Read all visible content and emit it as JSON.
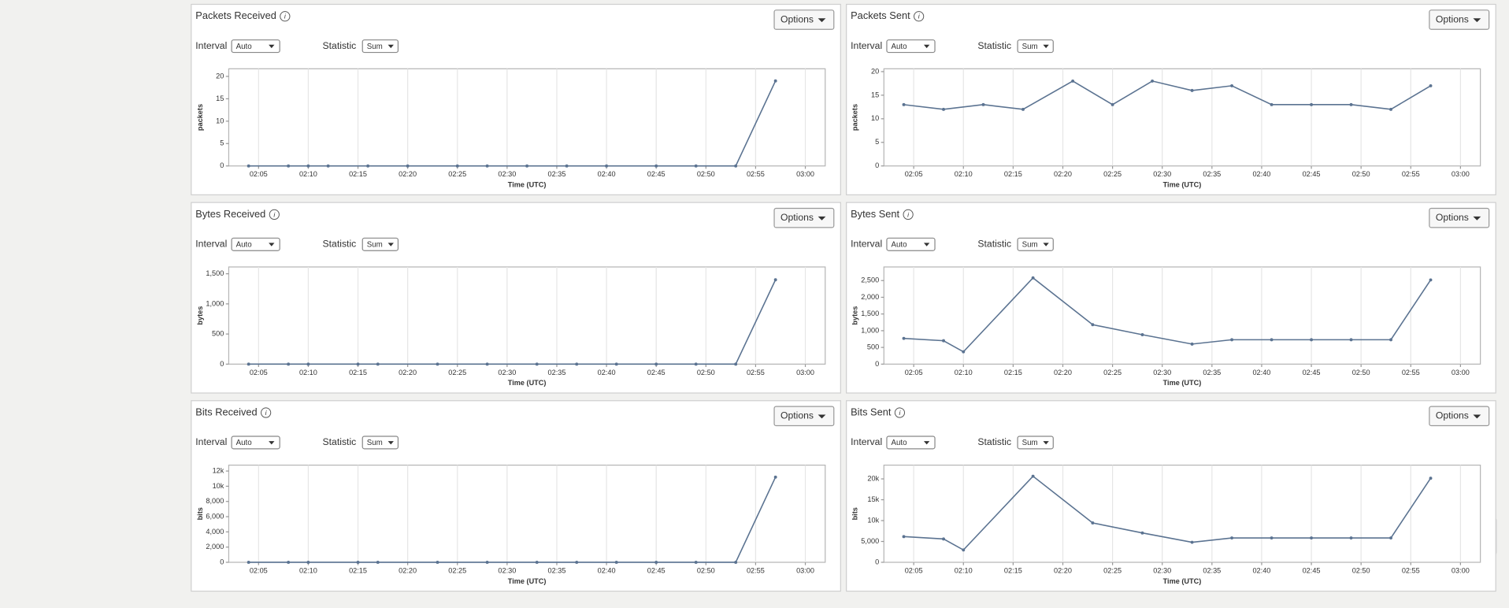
{
  "controls": {
    "options": "Options",
    "interval": "Interval",
    "interval_value": "Auto",
    "statistic": "Statistic",
    "statistic_value": "Sum"
  },
  "chart_data": [
    {
      "type": "line",
      "title": "Packets Received",
      "xlabel": "Time (UTC)",
      "ylabel": "packets",
      "color": "#5b7391",
      "x": [
        "02:04",
        "02:08",
        "02:10",
        "02:12",
        "02:16",
        "02:20",
        "02:25",
        "02:28",
        "02:32",
        "02:36",
        "02:40",
        "02:45",
        "02:49",
        "02:53",
        "02:57"
      ],
      "values": [
        0,
        0,
        0,
        0,
        0,
        0,
        0,
        0,
        0,
        0,
        0,
        0,
        0,
        0,
        19
      ],
      "xlim": [
        "02:02",
        "03:02"
      ],
      "xticks": [
        "02:05",
        "02:10",
        "02:15",
        "02:20",
        "02:25",
        "02:30",
        "02:35",
        "02:40",
        "02:45",
        "02:50",
        "02:55",
        "03:00"
      ],
      "ylim": [
        0,
        21.7
      ],
      "yticks": [
        0,
        5,
        10,
        15,
        20
      ]
    },
    {
      "type": "line",
      "title": "Packets Sent",
      "xlabel": "Time (UTC)",
      "ylabel": "packets",
      "color": "#5b7391",
      "x": [
        "02:04",
        "02:08",
        "02:12",
        "02:16",
        "02:21",
        "02:25",
        "02:29",
        "02:33",
        "02:37",
        "02:41",
        "02:45",
        "02:49",
        "02:53",
        "02:57"
      ],
      "values": [
        13,
        12,
        13,
        12,
        18,
        13,
        18,
        16,
        17,
        13,
        13,
        13,
        12,
        17
      ],
      "xlim": [
        "02:02",
        "03:02"
      ],
      "xticks": [
        "02:05",
        "02:10",
        "02:15",
        "02:20",
        "02:25",
        "02:30",
        "02:35",
        "02:40",
        "02:45",
        "02:50",
        "02:55",
        "03:00"
      ],
      "ylim": [
        0,
        20.6
      ],
      "yticks": [
        0,
        5,
        10,
        15,
        20
      ]
    },
    {
      "type": "line",
      "title": "Bytes Received",
      "xlabel": "Time (UTC)",
      "ylabel": "bytes",
      "color": "#5b7391",
      "x": [
        "02:04",
        "02:08",
        "02:10",
        "02:15",
        "02:17",
        "02:23",
        "02:28",
        "02:33",
        "02:37",
        "02:41",
        "02:45",
        "02:49",
        "02:53",
        "02:57"
      ],
      "values": [
        0,
        0,
        0,
        0,
        0,
        0,
        0,
        0,
        0,
        0,
        0,
        0,
        0,
        1400
      ],
      "xlim": [
        "02:02",
        "03:02"
      ],
      "xticks": [
        "02:05",
        "02:10",
        "02:15",
        "02:20",
        "02:25",
        "02:30",
        "02:35",
        "02:40",
        "02:45",
        "02:50",
        "02:55",
        "03:00"
      ],
      "ylim": [
        0,
        1613
      ],
      "yticks": [
        0,
        500,
        {
          "value": 1000,
          "label": "1,000"
        },
        {
          "value": 1500,
          "label": "1,500"
        }
      ]
    },
    {
      "type": "line",
      "title": "Bytes Sent",
      "xlabel": "Time (UTC)",
      "ylabel": "bytes",
      "color": "#5b7391",
      "x": [
        "02:04",
        "02:08",
        "02:10",
        "02:17",
        "02:23",
        "02:28",
        "02:33",
        "02:37",
        "02:41",
        "02:45",
        "02:49",
        "02:53",
        "02:57"
      ],
      "values": [
        770,
        700,
        370,
        2580,
        1180,
        880,
        600,
        730,
        730,
        730,
        730,
        730,
        2520
      ],
      "xlim": [
        "02:02",
        "03:02"
      ],
      "xticks": [
        "02:05",
        "02:10",
        "02:15",
        "02:20",
        "02:25",
        "02:30",
        "02:35",
        "02:40",
        "02:45",
        "02:50",
        "02:55",
        "03:00"
      ],
      "ylim": [
        0,
        2907
      ],
      "yticks": [
        0,
        500,
        {
          "value": 1000,
          "label": "1,000"
        },
        {
          "value": 1500,
          "label": "1,500"
        },
        {
          "value": 2000,
          "label": "2,000"
        },
        {
          "value": 2500,
          "label": "2,500"
        }
      ]
    },
    {
      "type": "line",
      "title": "Bits Received",
      "xlabel": "Time (UTC)",
      "ylabel": "bits",
      "color": "#5b7391",
      "x": [
        "02:04",
        "02:08",
        "02:10",
        "02:15",
        "02:17",
        "02:23",
        "02:28",
        "02:33",
        "02:37",
        "02:41",
        "02:45",
        "02:49",
        "02:53",
        "02:57"
      ],
      "values": [
        0,
        0,
        0,
        0,
        0,
        0,
        0,
        0,
        0,
        0,
        0,
        0,
        0,
        11200
      ],
      "xlim": [
        "02:02",
        "03:02"
      ],
      "xticks": [
        "02:05",
        "02:10",
        "02:15",
        "02:20",
        "02:25",
        "02:30",
        "02:35",
        "02:40",
        "02:45",
        "02:50",
        "02:55",
        "03:00"
      ],
      "ylim": [
        0,
        12774
      ],
      "yticks": [
        0,
        {
          "value": 2000,
          "label": "2,000"
        },
        {
          "value": 4000,
          "label": "4,000"
        },
        {
          "value": 6000,
          "label": "6,000"
        },
        {
          "value": 8000,
          "label": "8,000"
        },
        {
          "value": 10000,
          "label": "10k"
        },
        {
          "value": 12000,
          "label": "12k"
        }
      ]
    },
    {
      "type": "line",
      "title": "Bits Sent",
      "xlabel": "Time (UTC)",
      "ylabel": "bits",
      "color": "#5b7391",
      "x": [
        "02:04",
        "02:08",
        "02:10",
        "02:17",
        "02:23",
        "02:28",
        "02:33",
        "02:37",
        "02:41",
        "02:45",
        "02:49",
        "02:53",
        "02:57"
      ],
      "values": [
        6160,
        5600,
        2960,
        20640,
        9440,
        7040,
        4800,
        5840,
        5840,
        5840,
        5840,
        5840,
        20160
      ],
      "xlim": [
        "02:02",
        "03:02"
      ],
      "xticks": [
        "02:05",
        "02:10",
        "02:15",
        "02:20",
        "02:25",
        "02:30",
        "02:35",
        "02:40",
        "02:45",
        "02:50",
        "02:55",
        "03:00"
      ],
      "ylim": [
        0,
        23294
      ],
      "yticks": [
        0,
        {
          "value": 5000,
          "label": "5,000"
        },
        {
          "value": 10000,
          "label": "10k"
        },
        {
          "value": 15000,
          "label": "15k"
        },
        {
          "value": 20000,
          "label": "20k"
        }
      ]
    }
  ]
}
